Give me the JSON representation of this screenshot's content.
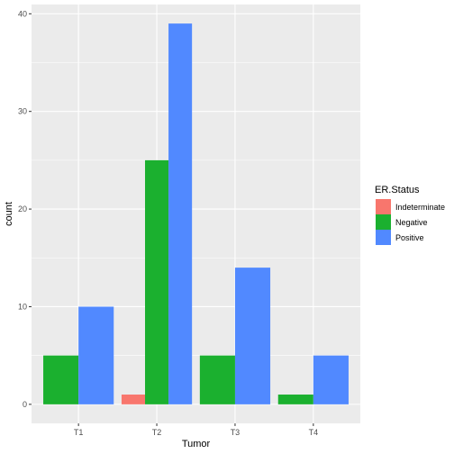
{
  "chart_data": {
    "type": "bar",
    "xlabel": "Tumor",
    "ylabel": "count",
    "categories": [
      "T1",
      "T2",
      "T3",
      "T4"
    ],
    "yticks": [
      "0",
      "10",
      "20",
      "30",
      "40"
    ],
    "ylim": [
      -1.95,
      40.95
    ],
    "grid": true,
    "legend": {
      "title": "ER.Status",
      "placement": "right"
    },
    "series": [
      {
        "name": "Indeterminate",
        "color": "#F8766D",
        "values": [
          null,
          1,
          null,
          null
        ]
      },
      {
        "name": "Negative",
        "color": "#1BB02F",
        "values": [
          5,
          25,
          5,
          1
        ]
      },
      {
        "name": "Positive",
        "color": "#5189FF",
        "values": [
          10,
          39,
          14,
          5
        ]
      }
    ]
  }
}
